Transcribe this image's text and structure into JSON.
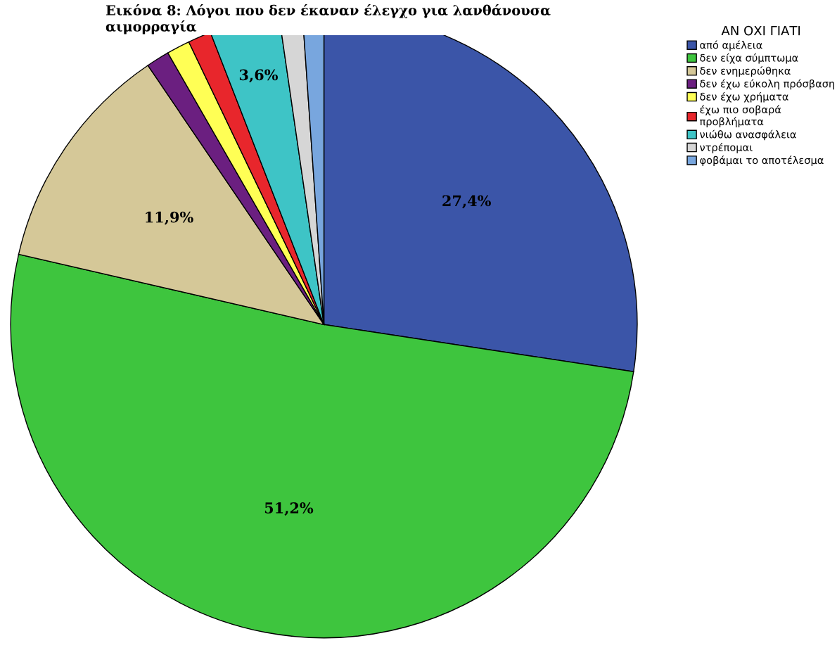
{
  "chart_data": {
    "type": "pie",
    "title": "Εικόνα 8: Λόγοι που δεν έκαναν έλεγχο για λανθάνουσα\nαιμορραγία",
    "legend_title": "ΑΝ ΟΧΙ ΓΙΑΤΙ",
    "categories": [
      "από αμέλεια",
      "δεν είχα σύμπτωμα",
      "δεν ενημερώθηκα",
      "δεν έχω εύκολη πρόσβαση",
      "δεν έχω χρήματα",
      "έχω πιο σοβαρά\nπροβλήματα",
      "νιώθω ανασφάλεια",
      "ντρέπομαι",
      "φοβάμαι το αποτέλεσμα"
    ],
    "values": [
      27.4,
      51.2,
      11.9,
      1.2,
      1.2,
      1.2,
      3.6,
      1.2,
      1.1
    ],
    "value_labels": [
      "27,4%",
      "51,2%",
      "11,9%",
      null,
      null,
      null,
      "3,6%",
      null,
      null
    ],
    "colors": [
      "#3b55a8",
      "#3ec53e",
      "#d5c898",
      "#6b1f80",
      "#ffff55",
      "#e8262c",
      "#3ec4c6",
      "#d6d6d6",
      "#78a6de"
    ],
    "legend": "right"
  }
}
